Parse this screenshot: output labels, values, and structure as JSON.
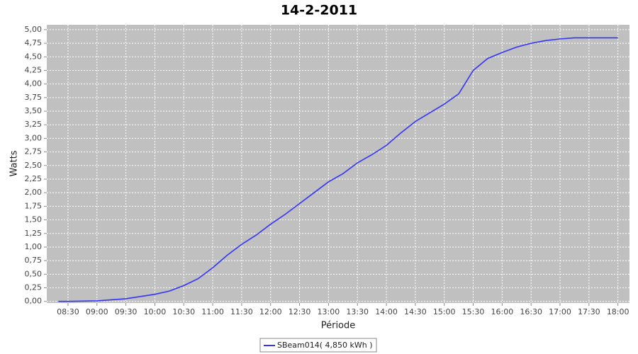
{
  "chart_data": {
    "type": "line",
    "title": "14-2-2011",
    "x_label": "Période",
    "y_label": "Watts",
    "x": [
      "08:20",
      "08:30",
      "09:00",
      "09:30",
      "10:00",
      "10:15",
      "10:30",
      "10:45",
      "11:00",
      "11:15",
      "11:30",
      "11:45",
      "12:00",
      "12:15",
      "12:30",
      "12:45",
      "13:00",
      "13:15",
      "13:30",
      "13:45",
      "14:00",
      "14:15",
      "14:30",
      "14:45",
      "15:00",
      "15:15",
      "15:30",
      "15:45",
      "16:00",
      "16:15",
      "16:30",
      "16:45",
      "17:00",
      "17:15",
      "17:30",
      "17:45",
      "18:00"
    ],
    "series": [
      {
        "name": "SBeam014( 4,850 kWh )",
        "color": "#3333ff",
        "values": [
          0.0,
          0.0,
          0.01,
          0.05,
          0.13,
          0.19,
          0.29,
          0.42,
          0.62,
          0.85,
          1.05,
          1.22,
          1.42,
          1.6,
          1.8,
          2.0,
          2.2,
          2.35,
          2.55,
          2.7,
          2.87,
          3.1,
          3.31,
          3.47,
          3.63,
          3.82,
          4.25,
          4.47,
          4.58,
          4.68,
          4.75,
          4.8,
          4.83,
          4.85,
          4.85,
          4.85,
          4.85
        ]
      }
    ],
    "xlim": [
      "08:08",
      "18:12"
    ],
    "xticks": [
      "08:30",
      "09:00",
      "09:30",
      "10:00",
      "10:30",
      "11:00",
      "11:30",
      "12:00",
      "12:30",
      "13:00",
      "13:30",
      "14:00",
      "14:30",
      "15:00",
      "15:30",
      "16:00",
      "16:30",
      "17:00",
      "17:30",
      "18:00"
    ],
    "ylim": [
      -0.03,
      5.09
    ],
    "yticks": [
      {
        "value": 0,
        "label": "0,00"
      },
      {
        "value": 0.25,
        "label": "0,25"
      },
      {
        "value": 0.5,
        "label": "0,50"
      },
      {
        "value": 0.75,
        "label": "0,75"
      },
      {
        "value": 1,
        "label": "1,00"
      },
      {
        "value": 1.25,
        "label": "1,25"
      },
      {
        "value": 1.5,
        "label": "1,50"
      },
      {
        "value": 1.75,
        "label": "1,75"
      },
      {
        "value": 2,
        "label": "2,00"
      },
      {
        "value": 2.25,
        "label": "2,25"
      },
      {
        "value": 2.5,
        "label": "2,50"
      },
      {
        "value": 2.75,
        "label": "2,75"
      },
      {
        "value": 3,
        "label": "3,00"
      },
      {
        "value": 3.25,
        "label": "3,25"
      },
      {
        "value": 3.5,
        "label": "3,50"
      },
      {
        "value": 3.75,
        "label": "3,75"
      },
      {
        "value": 4,
        "label": "4,00"
      },
      {
        "value": 4.25,
        "label": "4,25"
      },
      {
        "value": 4.5,
        "label": "4,50"
      },
      {
        "value": 4.75,
        "label": "4,75"
      },
      {
        "value": 5,
        "label": "5,00"
      }
    ],
    "grid": true,
    "legend": "bottom"
  }
}
